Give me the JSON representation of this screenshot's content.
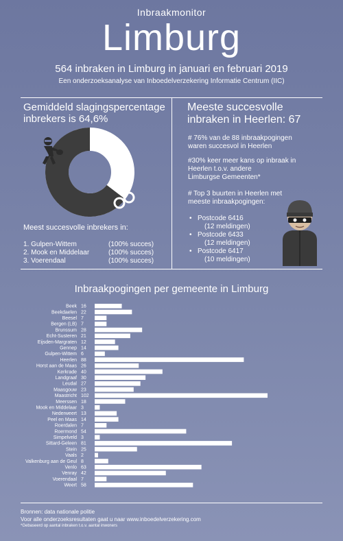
{
  "header": {
    "kicker": "Inbraakmonitor",
    "title": "Limburg",
    "headline": "564 inbraken in Limburg in januari en februari 2019",
    "subhead": "Een onderzoeksanalyse van Inboedelverzekering Informatie Centrum (IIC)"
  },
  "left_panel": {
    "title_line1": "Gemiddeld slagingspercentage",
    "title_line2": "inbrekers is 64,6%",
    "donut_percent": 64.6,
    "donut_colors": {
      "filled": "#3d3d3d",
      "empty": "#ffffff"
    },
    "list_title": "Meest succesvolle inbrekers in:",
    "list": [
      {
        "name": "1. Gulpen-Wittem",
        "value": "(100% succes)"
      },
      {
        "name": "2. Mook en Middelaar",
        "value": "(100% succes)"
      },
      {
        "name": "3. Voerendaal",
        "value": "(100% succes)"
      }
    ]
  },
  "right_panel": {
    "title_line1": "Meeste succesvolle",
    "title_line2": "inbraken in Heerlen: 67",
    "fact1_line1": "# 76% van de 88 inbraakpogingen",
    "fact1_line2": "waren  succesvol in Heerlen",
    "fact2_line1": "#30% keer meer kans op inbraak in",
    "fact2_line2": "Heerlen t.o.v. andere",
    "fact2_line3": "Limburgse Gemeenten*",
    "fact3_line1": "# Top 3 buurten in Heerlen met",
    "fact3_line2": "meeste inbraakpogingen:",
    "top3": [
      {
        "code": "Postcode 6416",
        "count": "(12 meldingen)"
      },
      {
        "code": "Postcode 6433",
        "count": "(12 meldingen)"
      },
      {
        "code": "Postcode 6417",
        "count": "(10 meldingen)"
      }
    ]
  },
  "icons": [
    "burglar-icon",
    "handcuffs-icon",
    "masked-burglar-icon"
  ],
  "chart_data": {
    "type": "bar",
    "orientation": "horizontal",
    "title": "Inbraakpogingen per gemeente in Limburg",
    "categories": [
      "Beek",
      "Beekdaelen",
      "Beesel",
      "Bergen (LB)",
      "Brunssum",
      "Echt-Susteren",
      "Eijsden-Margraten",
      "Gennep",
      "Gulpen-Wittem",
      "Heerlen",
      "Horst aan de Maas",
      "Kerkrade",
      "Landgraaf",
      "Leudal",
      "Maasgouw",
      "Maastricht",
      "Meerssen",
      "Mook en Middelaar",
      "Nederweert",
      "Peel en Maas",
      "Roerdalen",
      "Roermond",
      "Simpelveld",
      "Sittard-Geleen",
      "Stein",
      "Vaals",
      "Valkenburg aan de Geul",
      "Venlo",
      "Venray",
      "Voerendaal",
      "Weert"
    ],
    "values": [
      16,
      22,
      7,
      7,
      28,
      21,
      12,
      14,
      6,
      88,
      26,
      40,
      30,
      27,
      23,
      102,
      18,
      3,
      13,
      14,
      7,
      54,
      3,
      81,
      25,
      2,
      8,
      63,
      42,
      7,
      58
    ],
    "bar_color": "#ffffff",
    "xlim": [
      0,
      102
    ]
  },
  "footer": {
    "sources": "Bronnen: data nationale politie",
    "more": "Voor alle onderzoeksresultaten gaat u naar www.inboedelverzekering.com",
    "footnote": "*Gebaseerd op aantal inbraken t.o.v. aantal inwoners"
  }
}
